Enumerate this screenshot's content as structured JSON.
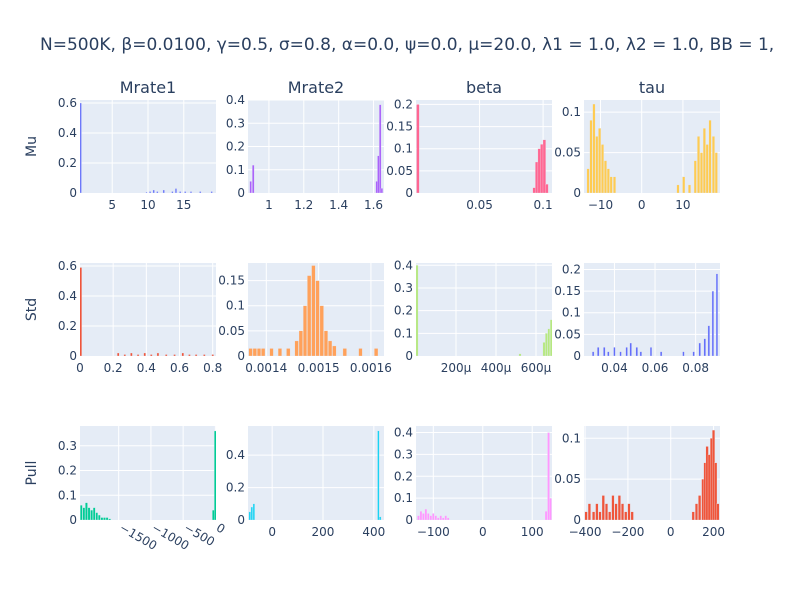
{
  "title": "N=500K, β=0.0100, γ=0.5, σ=0.8,  α=0.0, ψ=0.0, μ=20.0, λ1 = 1.0, λ2 = 1.0, BB = 1,",
  "column_titles": [
    "Mrate1",
    "Mrate2",
    "beta",
    "tau"
  ],
  "row_labels": [
    "Mu",
    "Std",
    "Pull"
  ],
  "chart_data": [
    {
      "type": "bar",
      "panel": "Mu / Mrate1",
      "row": 0,
      "col": 0,
      "color": "#636efa",
      "xlim": [
        0.5,
        19.5
      ],
      "ylim": [
        0,
        0.62
      ],
      "xticks": [
        5,
        10,
        15
      ],
      "xtick_labels": [
        "5",
        "10",
        "15"
      ],
      "yticks": [
        0,
        0.2,
        0.4,
        0.6
      ],
      "ytick_labels": [
        "0",
        "0.2",
        "0.4",
        "0.6"
      ],
      "x": [
        0.6,
        9.8,
        10.3,
        10.8,
        11.3,
        12.2,
        13.4,
        13.9,
        14.5,
        15.2,
        16.0,
        17.3,
        18.9
      ],
      "values": [
        0.6,
        0.006,
        0.01,
        0.02,
        0.01,
        0.02,
        0.01,
        0.03,
        0.01,
        0.01,
        0.01,
        0.01,
        0.01
      ],
      "bin_width": 0.22
    },
    {
      "type": "bar",
      "panel": "Mu / Mrate2",
      "row": 0,
      "col": 1,
      "color": "#ab63fa",
      "xlim": [
        0.88,
        1.66
      ],
      "ylim": [
        0,
        0.4
      ],
      "xticks": [
        1,
        1.2,
        1.4,
        1.6
      ],
      "xtick_labels": [
        "1",
        "1.2",
        "1.4",
        "1.6"
      ],
      "yticks": [
        0,
        0.1,
        0.2,
        0.3,
        0.4
      ],
      "ytick_labels": [
        "0",
        "0.1",
        "0.2",
        "0.3",
        "0.4"
      ],
      "x": [
        0.895,
        0.91,
        1.618,
        1.628,
        1.638,
        1.648
      ],
      "values": [
        0.05,
        0.12,
        0.05,
        0.16,
        0.38,
        0.02
      ],
      "bin_width": 0.011
    },
    {
      "type": "bar",
      "panel": "Mu / beta",
      "row": 0,
      "col": 2,
      "color": "#ff6692",
      "xlim": [
        0.0,
        0.107
      ],
      "ylim": [
        0,
        0.21
      ],
      "xticks": [
        0.05,
        0.1
      ],
      "xtick_labels": [
        "0.05",
        "0.1"
      ],
      "yticks": [
        0,
        0.05,
        0.1,
        0.15,
        0.2
      ],
      "ytick_labels": [
        "0",
        "0.05",
        "0.1",
        "0.15",
        "0.2"
      ],
      "x": [
        0.0015,
        0.093,
        0.095,
        0.097,
        0.099,
        0.101,
        0.103
      ],
      "values": [
        0.2,
        0.012,
        0.07,
        0.1,
        0.11,
        0.12,
        0.02
      ],
      "bin_width": 0.0022
    },
    {
      "type": "bar",
      "panel": "Mu / tau",
      "row": 0,
      "col": 3,
      "color": "#fecb52",
      "xlim": [
        -14,
        19
      ],
      "ylim": [
        0,
        0.115
      ],
      "xticks": [
        -10,
        0,
        10
      ],
      "xtick_labels": [
        "−10",
        "0",
        "10"
      ],
      "yticks": [
        0,
        0.05,
        0.1
      ],
      "ytick_labels": [
        "0",
        "0.05",
        "0.1"
      ],
      "x": [
        -13.0,
        -12.3,
        -11.6,
        -10.9,
        -10.2,
        -9.5,
        -8.8,
        -8.1,
        -7.4,
        -6.6,
        8.8,
        10.2,
        11.6,
        13.0,
        13.8,
        14.5,
        15.2,
        15.9,
        16.6,
        17.4,
        18.1
      ],
      "values": [
        0.03,
        0.09,
        0.11,
        0.07,
        0.08,
        0.06,
        0.04,
        0.03,
        0.02,
        0.02,
        0.01,
        0.02,
        0.01,
        0.04,
        0.07,
        0.05,
        0.08,
        0.06,
        0.09,
        0.07,
        0.05
      ],
      "bin_width": 0.6
    },
    {
      "type": "bar",
      "panel": "Std / Mrate1",
      "row": 1,
      "col": 0,
      "color": "#ef553b",
      "xlim": [
        0,
        0.82
      ],
      "ylim": [
        0,
        0.62
      ],
      "xticks": [
        0,
        0.2,
        0.4,
        0.6,
        0.8
      ],
      "xtick_labels": [
        "0",
        "0.2",
        "0.4",
        "0.6",
        "0.8"
      ],
      "yticks": [
        0,
        0.2,
        0.4,
        0.6
      ],
      "ytick_labels": [
        "0",
        "0.2",
        "0.4",
        "0.6"
      ],
      "x": [
        0.005,
        0.23,
        0.27,
        0.31,
        0.35,
        0.39,
        0.43,
        0.47,
        0.52,
        0.57,
        0.62,
        0.66,
        0.7,
        0.75,
        0.8
      ],
      "values": [
        0.59,
        0.02,
        0.01,
        0.02,
        0.01,
        0.02,
        0.01,
        0.02,
        0.01,
        0.01,
        0.02,
        0.01,
        0.01,
        0.01,
        0.01
      ],
      "bin_width": 0.012
    },
    {
      "type": "bar",
      "panel": "Std / Mrate2",
      "row": 1,
      "col": 1,
      "color": "#ffa15a",
      "xlim": [
        0.001365,
        0.001625
      ],
      "ylim": [
        0,
        0.185
      ],
      "xticks": [
        0.0014,
        0.0015,
        0.0016
      ],
      "xtick_labels": [
        "0.0014",
        "0.0015",
        "0.0016"
      ],
      "yticks": [
        0,
        0.05,
        0.1,
        0.15
      ],
      "ytick_labels": [
        "0",
        "0.05",
        "0.1",
        "0.15"
      ],
      "x": [
        0.00137,
        0.001378,
        0.001386,
        0.001394,
        0.00141,
        0.001426,
        0.001442,
        0.001458,
        0.001466,
        0.001474,
        0.001482,
        0.00149,
        0.001498,
        0.001506,
        0.001514,
        0.001522,
        0.00153,
        0.00155,
        0.00158,
        0.00161
      ],
      "values": [
        0.015,
        0.015,
        0.015,
        0.015,
        0.015,
        0.015,
        0.015,
        0.03,
        0.05,
        0.1,
        0.16,
        0.18,
        0.15,
        0.1,
        0.05,
        0.03,
        0.02,
        0.015,
        0.015,
        0.015
      ],
      "bin_width": 7e-06
    },
    {
      "type": "bar",
      "panel": "Std / beta",
      "row": 1,
      "col": 2,
      "color": "#b6e880",
      "xlim": [
        0,
        0.00068
      ],
      "ylim": [
        0,
        0.41
      ],
      "xticks": [
        0.0002,
        0.0004,
        0.0006
      ],
      "xtick_labels": [
        "200μ",
        "400μ",
        "600μ"
      ],
      "yticks": [
        0,
        0.1,
        0.2,
        0.3,
        0.4
      ],
      "ytick_labels": [
        "0",
        "0.1",
        "0.2",
        "0.3",
        "0.4"
      ],
      "x": [
        5e-06,
        0.00052,
        0.00064,
        0.000652,
        0.000664,
        0.000676
      ],
      "values": [
        0.4,
        0.01,
        0.06,
        0.1,
        0.12,
        0.16
      ],
      "bin_width": 1.1e-05
    },
    {
      "type": "bar",
      "panel": "Std / tau",
      "row": 1,
      "col": 3,
      "color": "#636efa",
      "xlim": [
        0.025,
        0.092
      ],
      "ylim": [
        0,
        0.215
      ],
      "xticks": [
        0.04,
        0.06,
        0.08
      ],
      "xtick_labels": [
        "0.04",
        "0.06",
        "0.08"
      ],
      "yticks": [
        0,
        0.05,
        0.1,
        0.15,
        0.2
      ],
      "ytick_labels": [
        "0",
        "0.05",
        "0.1",
        "0.15",
        "0.2"
      ],
      "x": [
        0.0295,
        0.032,
        0.035,
        0.037,
        0.04,
        0.043,
        0.046,
        0.048,
        0.051,
        0.053,
        0.058,
        0.063,
        0.074,
        0.079,
        0.082,
        0.0845,
        0.0865,
        0.0885,
        0.0905
      ],
      "values": [
        0.01,
        0.02,
        0.02,
        0.01,
        0.02,
        0.01,
        0.02,
        0.03,
        0.02,
        0.01,
        0.02,
        0.01,
        0.01,
        0.01,
        0.03,
        0.04,
        0.07,
        0.15,
        0.19
      ],
      "bin_width": 0.0009
    },
    {
      "type": "bar",
      "panel": "Pull / Mrate1",
      "row": 2,
      "col": 0,
      "color": "#00cc96",
      "xlim": [
        -2100,
        10
      ],
      "ylim": [
        0,
        0.38
      ],
      "xticks": [
        -1500,
        -1000,
        -500,
        0
      ],
      "xtick_labels": [
        "−1500",
        "−1000",
        "−500",
        "0"
      ],
      "yticks": [
        0,
        0.1,
        0.2,
        0.3
      ],
      "ytick_labels": [
        "0",
        "0.1",
        "0.2",
        "0.3"
      ],
      "x": [
        -2080,
        -2040,
        -2000,
        -1960,
        -1920,
        -1880,
        -1840,
        -1800,
        -1760,
        -1720,
        -1680,
        -1640,
        -30,
        0
      ],
      "values": [
        0.06,
        0.05,
        0.07,
        0.05,
        0.04,
        0.05,
        0.03,
        0.02,
        0.01,
        0.01,
        0.01,
        0.005,
        0.04,
        0.36
      ],
      "bin_width": 34
    },
    {
      "type": "bar",
      "panel": "Pull / Mrate2",
      "row": 2,
      "col": 1,
      "color": "#19d3f3",
      "xlim": [
        -95,
        440
      ],
      "ylim": [
        0,
        0.58
      ],
      "xticks": [
        0,
        200,
        400
      ],
      "xtick_labels": [
        "0",
        "200",
        "400"
      ],
      "yticks": [
        0,
        0.2,
        0.4
      ],
      "ytick_labels": [
        "0",
        "0.2",
        "0.4"
      ],
      "x": [
        -88,
        -80,
        -72,
        418,
        425
      ],
      "values": [
        0.05,
        0.08,
        0.1,
        0.55,
        0.02
      ],
      "bin_width": 7
    },
    {
      "type": "bar",
      "panel": "Pull / beta",
      "row": 2,
      "col": 2,
      "color": "#ff97ff",
      "xlim": [
        -135,
        140
      ],
      "ylim": [
        0,
        0.43
      ],
      "xticks": [
        -100,
        0,
        100
      ],
      "xtick_labels": [
        "−100",
        "0",
        "100"
      ],
      "yticks": [
        0,
        0.1,
        0.2,
        0.3,
        0.4
      ],
      "ytick_labels": [
        "0",
        "0.1",
        "0.2",
        "0.3",
        "0.4"
      ],
      "x": [
        -130,
        -125,
        -120,
        -115,
        -110,
        -105,
        -100,
        -95,
        -90,
        -85,
        -80,
        -75,
        -70,
        128,
        133,
        137
      ],
      "values": [
        0.02,
        0.04,
        0.03,
        0.05,
        0.03,
        0.02,
        0.03,
        0.02,
        0.01,
        0.02,
        0.01,
        0.02,
        0.01,
        0.04,
        0.4,
        0.1
      ],
      "bin_width": 4.2
    },
    {
      "type": "bar",
      "panel": "Pull / tau",
      "row": 2,
      "col": 3,
      "color": "#ef553b",
      "xlim": [
        -405,
        230
      ],
      "ylim": [
        0,
        0.115
      ],
      "xticks": [
        -400,
        -200,
        0,
        200
      ],
      "xtick_labels": [
        "−400",
        "−200",
        "0",
        "200"
      ],
      "yticks": [
        0,
        0.05,
        0.1
      ],
      "ytick_labels": [
        "0",
        "0.05",
        "0.1"
      ],
      "x": [
        -395,
        -380,
        -360,
        -345,
        -330,
        -315,
        -300,
        -285,
        -270,
        -255,
        -240,
        -225,
        -210,
        -195,
        -180,
        105,
        120,
        135,
        150,
        160,
        170,
        180,
        190,
        200,
        210,
        220
      ],
      "values": [
        0.01,
        0.02,
        0.01,
        0.02,
        0.01,
        0.03,
        0.02,
        0.01,
        0.03,
        0.02,
        0.03,
        0.02,
        0.01,
        0.02,
        0.01,
        0.01,
        0.02,
        0.03,
        0.05,
        0.07,
        0.09,
        0.08,
        0.1,
        0.11,
        0.07,
        0.02
      ],
      "bin_width": 12
    }
  ]
}
